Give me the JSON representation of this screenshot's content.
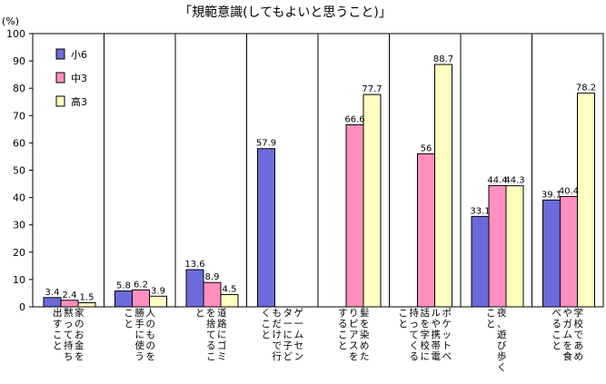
{
  "chart_data": {
    "type": "bar",
    "title": "「規範意識(してもよいと思うこと)」",
    "ylabel": "(%)",
    "ylim": [
      0,
      100
    ],
    "yticks": [
      0,
      10,
      20,
      30,
      40,
      50,
      60,
      70,
      80,
      90,
      100
    ],
    "grid": false,
    "legend_position": "top-left",
    "categories": [
      [
        "家のお金を",
        "黙って持ち",
        "出すこと"
      ],
      [
        "人のものを",
        "勝手に使う",
        "こと"
      ],
      [
        "道路にゴミ",
        "を捨てるこ",
        "と"
      ],
      [
        "ゲームセン",
        "ターに子ど",
        "もだけで行",
        "くこと"
      ],
      [
        "髪を染めた",
        "りピアスを",
        "すること"
      ],
      [
        "ポケットベ",
        "ルや携帯電",
        "話を学校に",
        "持ってくる",
        "こと"
      ],
      [
        "夜、遊び歩く",
        "こと"
      ],
      [
        "学校であめ",
        "やガムを食",
        "べること"
      ]
    ],
    "series": [
      {
        "name": "小6",
        "color": "#6b6bdc",
        "values": [
          3.4,
          5.8,
          13.6,
          57.9,
          null,
          null,
          33.1,
          39.1
        ],
        "labels": [
          "3.4",
          "5.8",
          "13.6",
          "57.9",
          "",
          "",
          "33.1",
          "39.1"
        ]
      },
      {
        "name": "中3",
        "color": "#ff8fbf",
        "values": [
          2.4,
          6.2,
          8.9,
          null,
          66.6,
          56,
          44.4,
          40.4
        ],
        "labels": [
          "2.4",
          "6.2",
          "8.9",
          "",
          "66.6",
          "56",
          "44.4",
          "40.4"
        ]
      },
      {
        "name": "高3",
        "color": "#ffffc0",
        "values": [
          1.5,
          3.9,
          4.5,
          null,
          77.7,
          88.7,
          44.3,
          78.2
        ],
        "labels": [
          "1.5",
          "3.9",
          "4.5",
          "",
          "77.7",
          "88.7",
          "44.3",
          "78.2"
        ]
      }
    ]
  }
}
